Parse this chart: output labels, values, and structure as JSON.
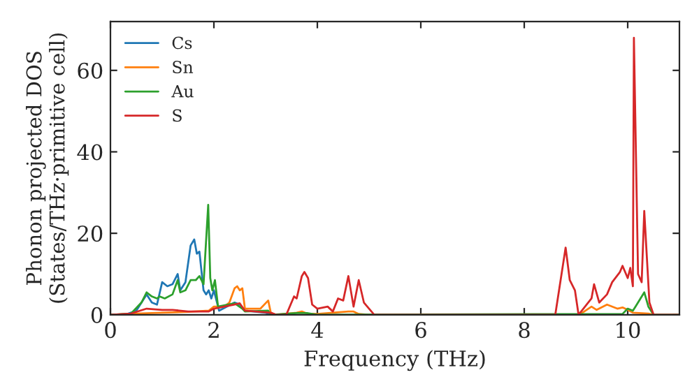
{
  "chart_data": {
    "type": "line",
    "xlabel": "Frequency (THz)",
    "ylabel": "Phonon projected DOS\n(States/THz·primitive cell)",
    "xlim": [
      0,
      11
    ],
    "ylim": [
      0,
      72
    ],
    "xticks": [
      0,
      2,
      4,
      6,
      8,
      10
    ],
    "yticks": [
      0,
      20,
      40,
      60
    ],
    "grid": false,
    "legend": "top left",
    "series": [
      {
        "name": "Cs",
        "color": "#1f77b4",
        "x": [
          0,
          0.3,
          0.5,
          0.7,
          0.8,
          0.9,
          1.0,
          1.1,
          1.2,
          1.3,
          1.35,
          1.45,
          1.55,
          1.62,
          1.67,
          1.72,
          1.8,
          1.85,
          1.9,
          1.95,
          2.0,
          2.1,
          2.4,
          2.5,
          2.6,
          3.0,
          3.1
        ],
        "values": [
          0,
          0.1,
          1,
          5,
          3,
          2.5,
          8,
          7,
          7.5,
          10,
          6,
          8,
          17,
          18.5,
          15,
          15.5,
          6,
          5,
          6,
          4,
          6,
          1,
          3,
          2.5,
          1,
          0.5,
          0
        ]
      },
      {
        "name": "Sn",
        "color": "#ff7f0e",
        "x": [
          0,
          0.5,
          1.0,
          1.5,
          1.9,
          2.0,
          2.2,
          2.3,
          2.4,
          2.45,
          2.5,
          2.55,
          2.6,
          2.9,
          3.05,
          3.1,
          3.2,
          3.6,
          3.7,
          3.8,
          4.0,
          4.6,
          4.7,
          4.8,
          5.0,
          9.0,
          9.1,
          9.3,
          9.4,
          9.6,
          9.8,
          9.9,
          10.0,
          10.1,
          10.4,
          10.5,
          11
        ],
        "values": [
          0,
          0.3,
          0.5,
          0.7,
          1,
          2,
          2,
          3,
          6.5,
          7,
          6,
          6.5,
          1.5,
          1.5,
          3.5,
          0.5,
          0,
          0.5,
          0.8,
          0.3,
          0.2,
          0.8,
          0.8,
          0.2,
          0,
          0,
          0.3,
          2,
          1.2,
          2.5,
          1.5,
          1.8,
          1.2,
          0.5,
          0.3,
          0,
          0
        ]
      },
      {
        "name": "Au",
        "color": "#2ca02c",
        "x": [
          0,
          0.4,
          0.6,
          0.7,
          0.8,
          0.9,
          0.95,
          1.05,
          1.2,
          1.3,
          1.35,
          1.45,
          1.55,
          1.65,
          1.72,
          1.8,
          1.89,
          1.93,
          1.97,
          2.02,
          2.08,
          2.4,
          2.55,
          2.6,
          3.05,
          3.1,
          3.6,
          3.8,
          4.0,
          9.9,
          10.0,
          10.1,
          10.15,
          10.32,
          10.4,
          10.5,
          11
        ],
        "values": [
          0,
          0.3,
          3,
          5.5,
          4.5,
          4,
          4.5,
          4,
          5,
          8.5,
          5.5,
          6,
          8.5,
          8.5,
          9.5,
          7.5,
          27,
          9,
          6,
          8.5,
          2,
          2.8,
          1.5,
          0.8,
          1,
          0,
          0.4,
          0.4,
          0,
          0.2,
          1.5,
          1,
          2,
          5.5,
          2,
          0,
          0
        ]
      },
      {
        "name": "S",
        "color": "#d62728",
        "x": [
          0,
          0.4,
          0.7,
          1.0,
          1.2,
          1.5,
          1.9,
          2.0,
          2.2,
          2.4,
          2.5,
          2.6,
          3.1,
          3.2,
          3.4,
          3.55,
          3.6,
          3.7,
          3.75,
          3.82,
          3.9,
          4.0,
          4.2,
          4.3,
          4.4,
          4.5,
          4.6,
          4.7,
          4.8,
          4.9,
          5.0,
          5.1,
          8.6,
          8.8,
          8.88,
          8.98,
          9.05,
          9.3,
          9.35,
          9.45,
          9.6,
          9.7,
          9.85,
          9.9,
          10.0,
          10.05,
          10.1,
          10.12,
          10.2,
          10.27,
          10.32,
          10.42,
          10.5,
          11
        ],
        "values": [
          0,
          0.3,
          1.5,
          1.2,
          1.2,
          0.8,
          0.8,
          1.5,
          2,
          2.5,
          2.8,
          1,
          0.5,
          0,
          0,
          4.5,
          4,
          9.5,
          10.5,
          9,
          2.5,
          1.5,
          2,
          0.8,
          4,
          3.5,
          9.5,
          2,
          8.5,
          3,
          1.5,
          0,
          0,
          16.5,
          8.5,
          6,
          0,
          4,
          7.5,
          3,
          5,
          8,
          10.5,
          12,
          9,
          11.5,
          7,
          68,
          10,
          8,
          25.5,
          3,
          0,
          0
        ]
      }
    ]
  }
}
